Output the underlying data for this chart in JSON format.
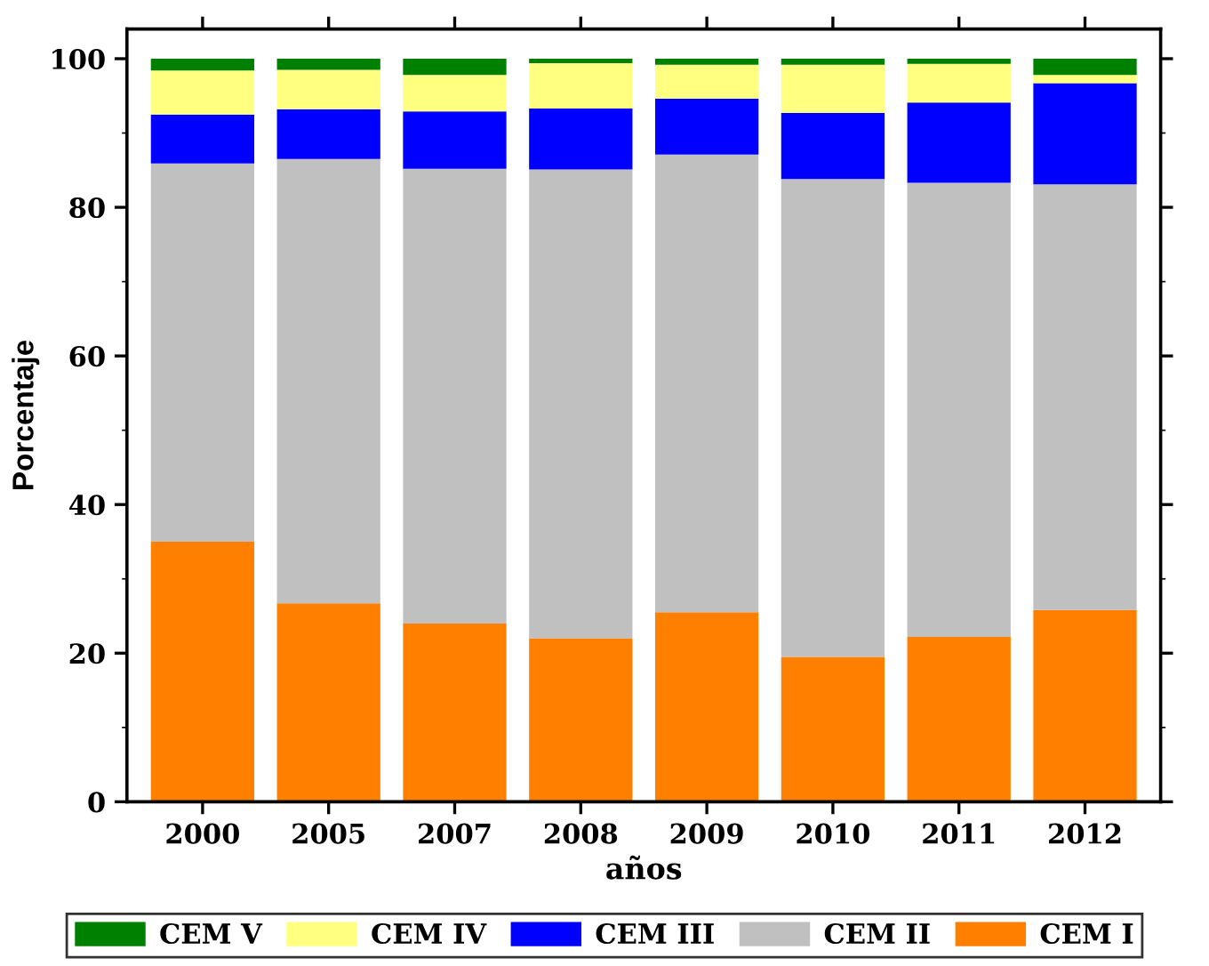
{
  "chart_data": {
    "type": "bar",
    "stacked": true,
    "xlabel": "años",
    "ylabel": "Porcentaje",
    "categories": [
      "2000",
      "2005",
      "2007",
      "2008",
      "2009",
      "2010",
      "2011",
      "2012"
    ],
    "series": [
      {
        "name": "CEM I",
        "color": "#ff8000",
        "values": [
          35,
          26.7,
          24,
          22,
          25.5,
          19.5,
          22.2,
          25.8
        ]
      },
      {
        "name": "CEM II",
        "color": "#c0c0c0",
        "values": [
          50.9,
          59.8,
          61.2,
          63.1,
          61.6,
          64.3,
          61.1,
          57.3
        ]
      },
      {
        "name": "CEM III",
        "color": "#0000ff",
        "values": [
          6.6,
          6.7,
          7.7,
          8.2,
          7.5,
          8.9,
          10.8,
          13.6
        ]
      },
      {
        "name": "CEM IV",
        "color": "#ffff80",
        "values": [
          5.9,
          5.3,
          4.9,
          6.1,
          4.6,
          6.5,
          5.2,
          1.1
        ]
      },
      {
        "name": "CEM V",
        "color": "#008000",
        "values": [
          1.6,
          1.5,
          2.2,
          0.6,
          0.8,
          0.8,
          0.7,
          2.2
        ]
      }
    ],
    "ylim": [
      0,
      104
    ],
    "yticks": [
      0,
      20,
      40,
      60,
      80,
      100
    ],
    "legend": "bottom",
    "grid": false
  }
}
